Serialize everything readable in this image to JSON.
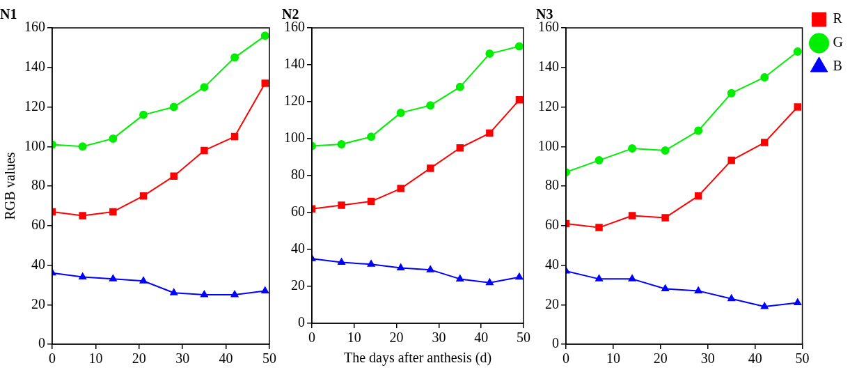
{
  "chart_data": [
    {
      "type": "line",
      "title": "N1",
      "ylabel": "RGB values",
      "x": [
        0,
        7,
        14,
        21,
        28,
        35,
        42,
        49
      ],
      "xlim": [
        0,
        50
      ],
      "xticks": [
        0,
        10,
        20,
        30,
        40,
        50
      ],
      "ylim": [
        0,
        160
      ],
      "yticks": [
        0,
        20,
        40,
        60,
        80,
        100,
        120,
        140,
        160
      ],
      "grid": false,
      "legend": false,
      "series": [
        {
          "color": "#ff0000",
          "marker": "square",
          "values": [
            67,
            65,
            67,
            75,
            85,
            98,
            105,
            132
          ]
        },
        {
          "color": "#00ee00",
          "marker": "circle",
          "values": [
            101,
            100,
            104,
            116,
            120,
            130,
            145,
            156
          ]
        },
        {
          "color": "#0000ff",
          "marker": "triangle",
          "values": [
            36,
            34,
            33,
            32,
            26,
            25,
            25,
            27
          ]
        }
      ]
    },
    {
      "type": "line",
      "title": "N2",
      "xlabel": "The days after anthesis (d)",
      "x": [
        0,
        7,
        14,
        21,
        28,
        35,
        42,
        49
      ],
      "xlim": [
        0,
        50
      ],
      "xticks": [
        0,
        10,
        20,
        30,
        40,
        50
      ],
      "ylim": [
        0,
        160
      ],
      "yticks": [
        0,
        20,
        40,
        60,
        80,
        100,
        120,
        140,
        160
      ],
      "grid": false,
      "legend": false,
      "series": [
        {
          "color": "#ff0000",
          "marker": "square",
          "values": [
            62,
            64,
            66,
            73,
            84,
            95,
            103,
            121
          ]
        },
        {
          "color": "#00ee00",
          "marker": "circle",
          "values": [
            96,
            97,
            101,
            114,
            118,
            128,
            146,
            150
          ]
        },
        {
          "color": "#0000ff",
          "marker": "triangle",
          "values": [
            35,
            33,
            32,
            30,
            29,
            24,
            22,
            25
          ]
        }
      ]
    },
    {
      "type": "line",
      "title": "N3",
      "x": [
        0,
        7,
        14,
        21,
        28,
        35,
        42,
        49
      ],
      "xlim": [
        0,
        50
      ],
      "xticks": [
        0,
        10,
        20,
        30,
        40,
        50
      ],
      "ylim": [
        0,
        160
      ],
      "yticks": [
        0,
        20,
        40,
        60,
        80,
        100,
        120,
        140,
        160
      ],
      "grid": false,
      "legend": "top right",
      "series": [
        {
          "name": "R",
          "color": "#ff0000",
          "marker": "square",
          "values": [
            61,
            59,
            65,
            64,
            75,
            93,
            102,
            120
          ]
        },
        {
          "name": "G",
          "color": "#00ee00",
          "marker": "circle",
          "values": [
            87,
            93,
            99,
            98,
            108,
            127,
            135,
            148
          ]
        },
        {
          "name": "B",
          "color": "#0000ff",
          "marker": "triangle",
          "values": [
            37,
            33,
            33,
            28,
            27,
            23,
            19,
            21
          ]
        }
      ]
    }
  ]
}
